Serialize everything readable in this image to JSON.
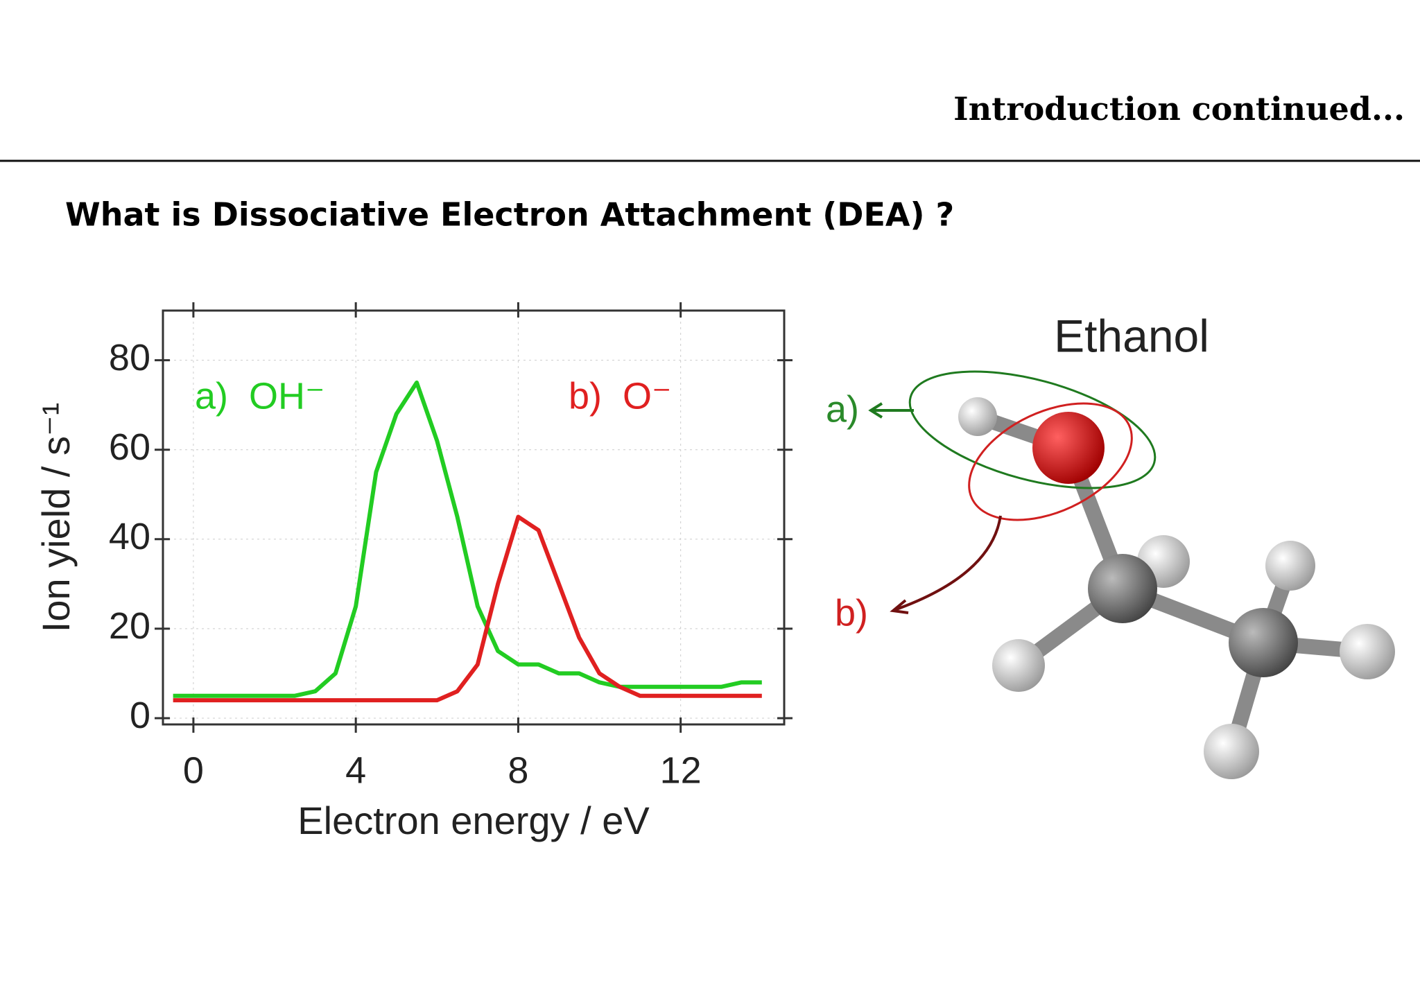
{
  "header": {
    "title": "Introduction continued..."
  },
  "question": "What is Dissociative Electron Attachment (DEA) ?",
  "chart_data": {
    "type": "line",
    "x_label": "Electron energy / eV",
    "y_label": "Ion yield / s⁻¹",
    "x": [
      -0.5,
      0,
      0.5,
      1,
      1.5,
      2,
      2.5,
      3,
      3.5,
      4,
      4.5,
      5,
      5.5,
      6,
      6.5,
      7,
      7.5,
      8,
      8.5,
      9,
      9.5,
      10,
      10.5,
      11,
      11.5,
      12,
      12.5,
      13,
      13.5,
      14
    ],
    "series": [
      {
        "name": "a)  OH⁻",
        "color": "#22cc22",
        "values": [
          5,
          5,
          5,
          5,
          5,
          5,
          5,
          6,
          10,
          25,
          55,
          68,
          75,
          62,
          45,
          25,
          15,
          12,
          12,
          10,
          10,
          8,
          7,
          7,
          7,
          7,
          7,
          7,
          8,
          8
        ]
      },
      {
        "name": "b)  O⁻",
        "color": "#e02020",
        "values": [
          4,
          4,
          4,
          4,
          4,
          4,
          4,
          4,
          4,
          4,
          4,
          4,
          4,
          4,
          6,
          12,
          30,
          45,
          42,
          30,
          18,
          10,
          7,
          5,
          5,
          5,
          5,
          5,
          5,
          5
        ]
      }
    ],
    "xlim": [
      -0.75,
      14.55
    ],
    "ylim": [
      -1.4,
      91.1
    ],
    "xticks": [
      0,
      4,
      8,
      12
    ],
    "yticks": [
      0,
      20,
      40,
      60,
      80
    ],
    "grid": true
  },
  "diagram": {
    "title": "Ethanol",
    "labels": [
      "a)",
      "b)"
    ]
  }
}
